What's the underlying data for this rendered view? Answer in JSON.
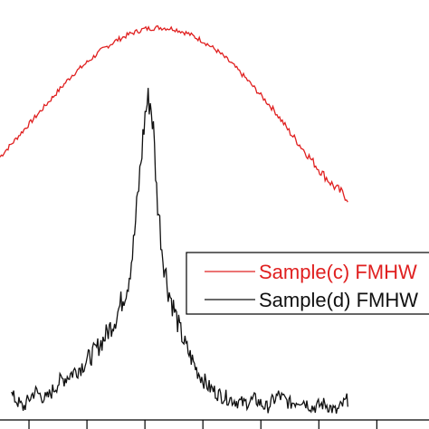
{
  "chart_data": {
    "type": "line",
    "title": "",
    "xlabel": "",
    "ylabel": "",
    "grid": false,
    "legend_position": "right, cropped at image edge",
    "x_ticks_visible_count": 7,
    "xlim": [
      0,
      7.4
    ],
    "ylim": [
      0,
      1.0
    ],
    "series": [
      {
        "name": "Sample(c) FMHW",
        "color": "#e02020",
        "x": [
          0.0,
          0.25,
          0.5,
          0.75,
          1.0,
          1.25,
          1.5,
          1.75,
          2.0,
          2.25,
          2.5,
          2.75,
          3.0,
          3.25,
          3.5,
          3.75,
          4.0,
          4.25,
          4.5,
          4.75,
          5.0,
          5.25,
          5.5,
          5.75,
          6.0
        ],
        "values": [
          0.64,
          0.68,
          0.72,
          0.76,
          0.8,
          0.84,
          0.87,
          0.9,
          0.923,
          0.94,
          0.952,
          0.955,
          0.952,
          0.94,
          0.922,
          0.898,
          0.867,
          0.83,
          0.79,
          0.75,
          0.7,
          0.655,
          0.61,
          0.57,
          0.54
        ]
      },
      {
        "name": "Sample(d) FMHW",
        "color": "#111111",
        "x": [
          0.2,
          0.4,
          0.6,
          0.8,
          1.0,
          1.2,
          1.4,
          1.6,
          1.8,
          2.0,
          2.2,
          2.3,
          2.4,
          2.5,
          2.55,
          2.6,
          2.65,
          2.7,
          2.8,
          2.9,
          3.0,
          3.1,
          3.2,
          3.3,
          3.4,
          3.5,
          3.6,
          3.8,
          4.0,
          4.2,
          4.4,
          4.6,
          4.8,
          5.0,
          5.2,
          5.4,
          5.6,
          5.8,
          6.0
        ],
        "values": [
          0.06,
          0.03,
          0.07,
          0.05,
          0.09,
          0.11,
          0.13,
          0.16,
          0.2,
          0.25,
          0.33,
          0.42,
          0.58,
          0.74,
          0.78,
          0.77,
          0.7,
          0.56,
          0.41,
          0.32,
          0.27,
          0.22,
          0.18,
          0.15,
          0.12,
          0.1,
          0.08,
          0.06,
          0.05,
          0.04,
          0.05,
          0.03,
          0.06,
          0.04,
          0.05,
          0.03,
          0.04,
          0.02,
          0.05
        ]
      }
    ]
  }
}
